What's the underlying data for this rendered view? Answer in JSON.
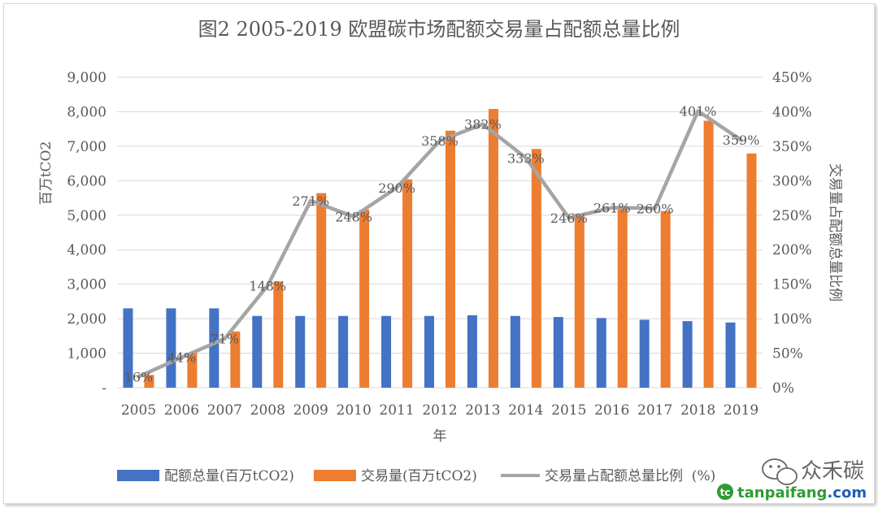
{
  "chart_data": {
    "type": "bar+line",
    "title": "图2 2005-2019 欧盟碳市场配额交易量占配额总量比例",
    "xlabel": "年",
    "ylabel_left": "百万tCO2",
    "ylabel_right": "交易量占配额总量比例",
    "categories": [
      "2005",
      "2006",
      "2007",
      "2008",
      "2009",
      "2010",
      "2011",
      "2012",
      "2013",
      "2014",
      "2015",
      "2016",
      "2017",
      "2018",
      "2019"
    ],
    "y_left_ticks": [
      "-",
      "1,000",
      "2,000",
      "3,000",
      "4,000",
      "5,000",
      "6,000",
      "7,000",
      "8,000",
      "9,000"
    ],
    "y_right_ticks": [
      "0%",
      "50%",
      "100%",
      "150%",
      "200%",
      "250%",
      "300%",
      "350%",
      "400%",
      "450%"
    ],
    "ylim_left": [
      0,
      9000
    ],
    "ylim_right": [
      0,
      450
    ],
    "grid": true,
    "legend_position": "bottom",
    "series": [
      {
        "name": "配额总量(百万tCO2)",
        "type": "bar",
        "axis": "left",
        "color": "#4472C4",
        "values": [
          2300,
          2300,
          2300,
          2080,
          2080,
          2080,
          2080,
          2080,
          2100,
          2080,
          2050,
          2020,
          1970,
          1930,
          1890
        ]
      },
      {
        "name": "交易量(百万tCO2)",
        "type": "bar",
        "axis": "left",
        "color": "#ED7D31",
        "values": [
          370,
          1010,
          1630,
          3080,
          5640,
          5160,
          6040,
          7450,
          8080,
          6920,
          5040,
          5270,
          5120,
          7740,
          6790
        ]
      },
      {
        "name": "交易量占配额总量比例  (%)",
        "type": "line",
        "axis": "right",
        "color": "#A5A5A5",
        "values": [
          16,
          44,
          71,
          148,
          271,
          248,
          290,
          358,
          382,
          333,
          246,
          261,
          260,
          401,
          359
        ],
        "labels": [
          "16%",
          "44%",
          "71%",
          "148%",
          "271%",
          "248%",
          "290%",
          "358%",
          "382%",
          "333%",
          "246%",
          "261%",
          "260%",
          "401%",
          "359%"
        ]
      }
    ]
  },
  "watermark": {
    "wechat_name": "众禾碳",
    "site": "tanpaifang.com",
    "site_green": "#2e9b32",
    "site_blue": "#1f5fb4"
  }
}
